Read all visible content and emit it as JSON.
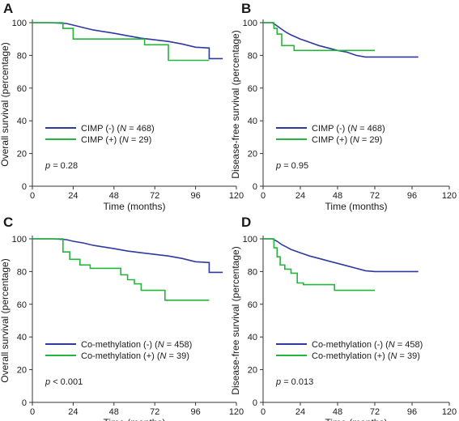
{
  "colors": {
    "group_neg": "#2e3a9f",
    "group_pos": "#25b53a",
    "axis": "#333333"
  },
  "chart_data": [
    {
      "type": "line",
      "panel": "A",
      "ylabel": "Overall survival (percentage)",
      "xlabel": "Time (months)",
      "xlim": [
        0,
        120
      ],
      "ylim": [
        0,
        100
      ],
      "xticks": [
        0,
        24,
        48,
        72,
        96,
        120
      ],
      "yticks": [
        0,
        20,
        40,
        60,
        80,
        100
      ],
      "grid": false,
      "legend_position": "bottom-left",
      "p_prefix": "p",
      "p_value": "= 0.28",
      "series": [
        {
          "name": "CIMP (-)",
          "n_label": "N",
          "n_value": "= 468",
          "color_key": "group_neg",
          "points": [
            [
              0,
              100
            ],
            [
              10,
              100
            ],
            [
              20,
              99.5
            ],
            [
              24,
              98.5
            ],
            [
              30,
              97
            ],
            [
              36,
              95.5
            ],
            [
              42,
              94.5
            ],
            [
              48,
              93.5
            ],
            [
              56,
              92
            ],
            [
              64,
              90.5
            ],
            [
              72,
              89.5
            ],
            [
              80,
              88.5
            ],
            [
              88,
              87
            ],
            [
              96,
              85
            ],
            [
              104,
              84.5
            ],
            [
              104,
              78
            ],
            [
              112,
              78
            ]
          ]
        },
        {
          "name": "CIMP (+)",
          "n_label": "N",
          "n_value": "= 29",
          "color_key": "group_pos",
          "points": [
            [
              0,
              100
            ],
            [
              18,
              100
            ],
            [
              18,
              96.5
            ],
            [
              24,
              96.5
            ],
            [
              24,
              90
            ],
            [
              66,
              90
            ],
            [
              66,
              86.5
            ],
            [
              80,
              86.5
            ],
            [
              80,
              77
            ],
            [
              104,
              77
            ]
          ]
        }
      ]
    },
    {
      "type": "line",
      "panel": "B",
      "ylabel": "Disease-free survival (percentage)",
      "xlabel": "Time (months)",
      "xlim": [
        0,
        120
      ],
      "ylim": [
        0,
        100
      ],
      "xticks": [
        0,
        24,
        48,
        72,
        96,
        120
      ],
      "yticks": [
        0,
        20,
        40,
        60,
        80,
        100
      ],
      "grid": false,
      "legend_position": "bottom-left",
      "p_prefix": "p",
      "p_value": "= 0.95",
      "series": [
        {
          "name": "CIMP (-)",
          "n_label": "N",
          "n_value": "= 468",
          "color_key": "group_neg",
          "points": [
            [
              0,
              100
            ],
            [
              6,
              100
            ],
            [
              9,
              98
            ],
            [
              12,
              96
            ],
            [
              15,
              94
            ],
            [
              18,
              92.5
            ],
            [
              24,
              90
            ],
            [
              30,
              88
            ],
            [
              36,
              86
            ],
            [
              42,
              84.5
            ],
            [
              48,
              83
            ],
            [
              54,
              82
            ],
            [
              60,
              80
            ],
            [
              66,
              79
            ],
            [
              72,
              79
            ],
            [
              100,
              79
            ]
          ]
        },
        {
          "name": "CIMP (+)",
          "n_label": "N",
          "n_value": "= 29",
          "color_key": "group_pos",
          "points": [
            [
              0,
              100
            ],
            [
              7,
              100
            ],
            [
              7,
              96.5
            ],
            [
              9,
              96.5
            ],
            [
              9,
              93
            ],
            [
              12,
              93
            ],
            [
              12,
              86
            ],
            [
              20,
              86
            ],
            [
              20,
              83
            ],
            [
              72,
              83
            ]
          ]
        }
      ]
    },
    {
      "type": "line",
      "panel": "C",
      "ylabel": "Overall survival (percentage)",
      "xlabel": "Time (months)",
      "xlim": [
        0,
        120
      ],
      "ylim": [
        0,
        100
      ],
      "xticks": [
        0,
        24,
        48,
        72,
        96,
        120
      ],
      "yticks": [
        0,
        20,
        40,
        60,
        80,
        100
      ],
      "grid": false,
      "legend_position": "bottom-left",
      "p_prefix": "p",
      "p_value": "< 0.001",
      "series": [
        {
          "name": "Co-methylation (-)",
          "n_label": "N",
          "n_value": "= 458",
          "color_key": "group_neg",
          "points": [
            [
              0,
              100
            ],
            [
              12,
              100
            ],
            [
              20,
              99.5
            ],
            [
              24,
              98.5
            ],
            [
              30,
              97.5
            ],
            [
              36,
              96
            ],
            [
              42,
              95
            ],
            [
              48,
              94
            ],
            [
              56,
              92.5
            ],
            [
              64,
              91.5
            ],
            [
              72,
              90.5
            ],
            [
              80,
              89.5
            ],
            [
              88,
              88
            ],
            [
              96,
              86
            ],
            [
              104,
              85.5
            ],
            [
              104,
              79.5
            ],
            [
              112,
              79.5
            ]
          ]
        },
        {
          "name": "Co-methylation (+)",
          "n_label": "N",
          "n_value": "= 39",
          "color_key": "group_pos",
          "points": [
            [
              0,
              100
            ],
            [
              18,
              100
            ],
            [
              18,
              92
            ],
            [
              22,
              92
            ],
            [
              22,
              87.5
            ],
            [
              28,
              87.5
            ],
            [
              28,
              84
            ],
            [
              34,
              84
            ],
            [
              34,
              82
            ],
            [
              52,
              82
            ],
            [
              52,
              78
            ],
            [
              56,
              78
            ],
            [
              56,
              75
            ],
            [
              60,
              75
            ],
            [
              60,
              72.5
            ],
            [
              64,
              72.5
            ],
            [
              64,
              68.5
            ],
            [
              78,
              68.5
            ],
            [
              78,
              62.5
            ],
            [
              104,
              62.5
            ]
          ]
        }
      ]
    },
    {
      "type": "line",
      "panel": "D",
      "ylabel": "Disease-free survival (percentage)",
      "xlabel": "Time (months)",
      "xlim": [
        0,
        120
      ],
      "ylim": [
        0,
        100
      ],
      "xticks": [
        0,
        24,
        48,
        72,
        96,
        120
      ],
      "yticks": [
        0,
        20,
        40,
        60,
        80,
        100
      ],
      "grid": false,
      "legend_position": "bottom-left",
      "p_prefix": "p",
      "p_value": "= 0.013",
      "series": [
        {
          "name": "Co-methylation (-)",
          "n_label": "N",
          "n_value": "= 458",
          "color_key": "group_neg",
          "points": [
            [
              0,
              100
            ],
            [
              6,
              100
            ],
            [
              9,
              98.5
            ],
            [
              12,
              96.5
            ],
            [
              15,
              95
            ],
            [
              18,
              93.5
            ],
            [
              24,
              91.5
            ],
            [
              30,
              89.5
            ],
            [
              36,
              88
            ],
            [
              42,
              86.5
            ],
            [
              48,
              85
            ],
            [
              54,
              83.5
            ],
            [
              60,
              82
            ],
            [
              66,
              80.5
            ],
            [
              72,
              80
            ],
            [
              100,
              80
            ]
          ]
        },
        {
          "name": "Co-methylation (+)",
          "n_label": "N",
          "n_value": "= 39",
          "color_key": "group_pos",
          "points": [
            [
              0,
              100
            ],
            [
              7,
              100
            ],
            [
              7,
              94.5
            ],
            [
              9,
              94.5
            ],
            [
              9,
              89
            ],
            [
              11,
              89
            ],
            [
              11,
              84
            ],
            [
              14,
              84
            ],
            [
              14,
              81.5
            ],
            [
              18,
              81.5
            ],
            [
              18,
              79
            ],
            [
              22,
              79
            ],
            [
              22,
              73
            ],
            [
              26,
              73
            ],
            [
              26,
              72
            ],
            [
              46,
              72
            ],
            [
              46,
              68.5
            ],
            [
              72,
              68.5
            ]
          ]
        }
      ]
    }
  ]
}
